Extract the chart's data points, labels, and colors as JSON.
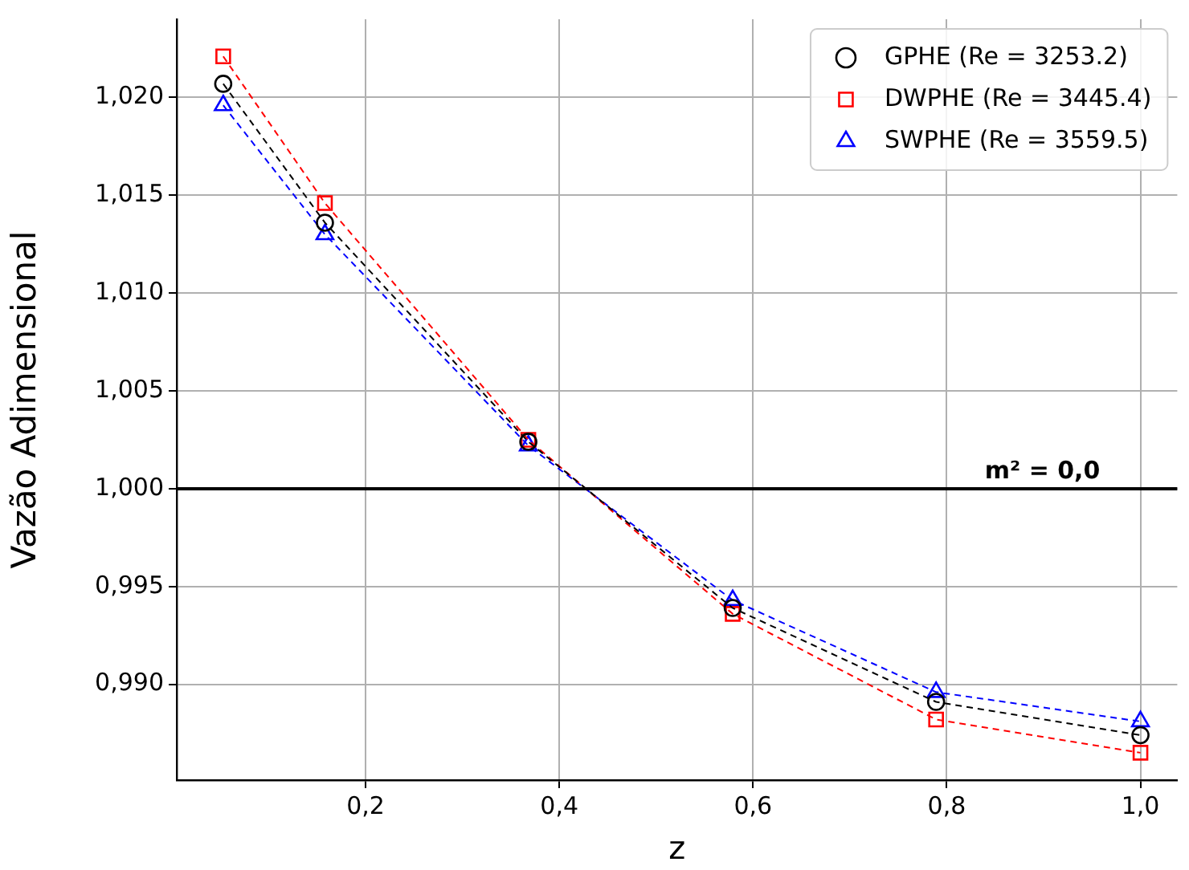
{
  "chart_data": {
    "type": "line",
    "xlabel": "z",
    "ylabel": "Vazão Adimensional",
    "x": [
      0.053,
      0.158,
      0.368,
      0.579,
      0.789,
      1.0
    ],
    "series": [
      {
        "name": "GPHE (Re = 3253.2)",
        "color": "#000000",
        "marker": "circle",
        "values": [
          1.0207,
          1.0136,
          1.0024,
          0.9939,
          0.9891,
          0.9874
        ]
      },
      {
        "name": "DWPHE (Re = 3445.4)",
        "color": "#ff0000",
        "marker": "square",
        "values": [
          1.0221,
          1.0146,
          1.0025,
          0.9936,
          0.9882,
          0.9865
        ]
      },
      {
        "name": "SWPHE (Re = 3559.5)",
        "color": "#0000ff",
        "marker": "triangle",
        "values": [
          1.0196,
          1.013,
          1.0022,
          0.9943,
          0.9896,
          0.9881
        ]
      }
    ],
    "line_style": "dashed",
    "xlim": [
      0.005,
      1.038
    ],
    "ylim": [
      0.9851,
      1.024
    ],
    "xticks": [
      {
        "value": 0.2,
        "label": "0,2"
      },
      {
        "value": 0.4,
        "label": "0,4"
      },
      {
        "value": 0.6,
        "label": "0,6"
      },
      {
        "value": 0.8,
        "label": "0,8"
      },
      {
        "value": 1.0,
        "label": "1,0"
      }
    ],
    "yticks": [
      {
        "value": 0.99,
        "label": "0,990"
      },
      {
        "value": 0.995,
        "label": "0,995"
      },
      {
        "value": 1.0,
        "label": "1,000"
      },
      {
        "value": 1.005,
        "label": "1,005"
      },
      {
        "value": 1.01,
        "label": "1,010"
      },
      {
        "value": 1.015,
        "label": "1,015"
      },
      {
        "value": 1.02,
        "label": "1,020"
      }
    ],
    "ref_lines": [
      {
        "axis": "y",
        "value": 1.0,
        "color": "#000000"
      }
    ],
    "annotations": [
      "m² = 0,0"
    ],
    "grid": true,
    "legend": "top right"
  }
}
